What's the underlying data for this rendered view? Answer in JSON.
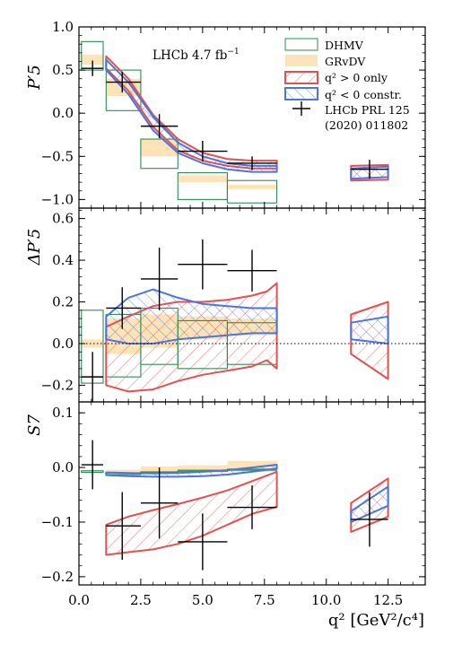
{
  "chart_data": [
    {
      "type": "line",
      "panel": "P5prime",
      "ylabel": "P′5",
      "xlabel": "",
      "ylim": [
        -1.1,
        1.0
      ],
      "xlim": [
        0,
        14
      ],
      "yticks": [
        "−1.0",
        "−0.5",
        "0.0",
        "0.5",
        "1.0"
      ],
      "ytick_values": [
        -1.0,
        -0.5,
        0.0,
        0.5,
        1.0
      ],
      "annotation": "LHCb 4.7 fb",
      "annotation_sup": "−1",
      "legend": [
        {
          "label": "DHMV",
          "kind": "dhmv"
        },
        {
          "label": "GRvDV",
          "kind": "grvdv"
        },
        {
          "label": "q² > 0 only",
          "kind": "red"
        },
        {
          "label": "q² < 0 constr.",
          "kind": "blue"
        },
        {
          "label": "LHCb PRL 125",
          "kind": "data"
        },
        {
          "label": "(2020) 011802",
          "kind": "none"
        }
      ],
      "dhmv_bins": [
        {
          "x": [
            0.1,
            0.98
          ],
          "lo": 0.5,
          "hi": 0.83
        },
        {
          "x": [
            1.1,
            2.5
          ],
          "lo": 0.03,
          "hi": 0.5
        },
        {
          "x": [
            2.5,
            4.0
          ],
          "lo": -0.64,
          "hi": -0.3
        },
        {
          "x": [
            4.0,
            6.0
          ],
          "lo": -1.0,
          "hi": -0.69
        },
        {
          "x": [
            6.0,
            8.0
          ],
          "lo": -1.04,
          "hi": -0.78
        }
      ],
      "grvdv_bins": [
        {
          "x": [
            0.1,
            0.98
          ],
          "lo": 0.56,
          "hi": 0.68
        },
        {
          "x": [
            1.1,
            2.5
          ],
          "lo": 0.2,
          "hi": 0.4
        },
        {
          "x": [
            2.5,
            4.0
          ],
          "lo": -0.5,
          "hi": -0.3
        },
        {
          "x": [
            4.0,
            6.0
          ],
          "lo": -0.8,
          "hi": -0.72
        },
        {
          "x": [
            6.0,
            8.0
          ],
          "lo": -0.88,
          "hi": -0.83
        }
      ],
      "red_bands": [
        {
          "x": [
            1.1,
            2.0,
            3.0,
            4.0,
            5.0,
            6.0,
            7.0,
            8.0
          ],
          "lo": [
            0.52,
            0.26,
            -0.16,
            -0.43,
            -0.55,
            -0.61,
            -0.64,
            -0.64
          ],
          "hi": [
            0.66,
            0.4,
            -0.02,
            -0.3,
            -0.46,
            -0.53,
            -0.55,
            -0.55
          ]
        },
        {
          "x": [
            11.0,
            12.5
          ],
          "lo": [
            -0.78,
            -0.77
          ],
          "hi": [
            -0.61,
            -0.6
          ]
        }
      ],
      "blue_bands": [
        {
          "x": [
            1.1,
            2.0,
            3.0,
            4.0,
            5.0,
            6.0,
            7.0,
            8.0
          ],
          "lo": [
            0.5,
            0.22,
            -0.2,
            -0.46,
            -0.58,
            -0.65,
            -0.68,
            -0.68
          ],
          "hi": [
            0.62,
            0.36,
            -0.04,
            -0.34,
            -0.5,
            -0.58,
            -0.61,
            -0.61
          ]
        },
        {
          "x": [
            11.0,
            12.5
          ],
          "lo": [
            -0.76,
            -0.74
          ],
          "hi": [
            -0.64,
            -0.62
          ]
        }
      ],
      "points": [
        {
          "x": 0.55,
          "xerr": [
            0.1,
            0.98
          ],
          "y": 0.52,
          "yerr": 0.09
        },
        {
          "x": 1.75,
          "xerr": [
            1.1,
            2.5
          ],
          "y": 0.36,
          "yerr": 0.12
        },
        {
          "x": 3.25,
          "xerr": [
            2.5,
            4.0
          ],
          "y": -0.15,
          "yerr": 0.14
        },
        {
          "x": 5.0,
          "xerr": [
            4.0,
            6.0
          ],
          "y": -0.44,
          "yerr": 0.12
        },
        {
          "x": 7.0,
          "xerr": [
            6.0,
            8.0
          ],
          "y": -0.58,
          "yerr": 0.08
        },
        {
          "x": 11.75,
          "xerr": [
            11.0,
            12.5
          ],
          "y": -0.65,
          "yerr": 0.11
        }
      ]
    },
    {
      "type": "line",
      "panel": "DeltaP5prime",
      "ylabel": "ΔP′5",
      "xlabel": "",
      "ylim": [
        -0.28,
        0.65
      ],
      "xlim": [
        0,
        14
      ],
      "yticks": [
        "−0.2",
        "0.0",
        "0.2",
        "0.4",
        "0.6"
      ],
      "ytick_values": [
        -0.2,
        0.0,
        0.2,
        0.4,
        0.6
      ],
      "zero_line": true,
      "dhmv_bins": [
        {
          "x": [
            0.1,
            0.98
          ],
          "lo": -0.19,
          "hi": 0.16
        },
        {
          "x": [
            1.1,
            2.5
          ],
          "lo": -0.16,
          "hi": 0.14
        },
        {
          "x": [
            2.5,
            4.0
          ],
          "lo": -0.1,
          "hi": 0.17
        },
        {
          "x": [
            4.0,
            6.0
          ],
          "lo": -0.12,
          "hi": 0.11
        },
        {
          "x": [
            6.0,
            8.0
          ],
          "lo": -0.1,
          "hi": 0.1
        }
      ],
      "grvdv_bins": [
        {
          "x": [
            0.1,
            0.98
          ],
          "lo": -0.02,
          "hi": 0.02
        },
        {
          "x": [
            1.1,
            2.5
          ],
          "lo": -0.05,
          "hi": 0.12
        },
        {
          "x": [
            2.5,
            4.0
          ],
          "lo": -0.02,
          "hi": 0.14
        },
        {
          "x": [
            4.0,
            6.0
          ],
          "lo": 0.02,
          "hi": 0.13
        },
        {
          "x": [
            6.0,
            8.0
          ],
          "lo": 0.04,
          "hi": 0.12
        }
      ],
      "red_bands": [
        {
          "x": [
            1.1,
            2.0,
            3.0,
            4.0,
            5.0,
            6.0,
            7.0,
            7.6,
            8.0
          ],
          "lo": [
            -0.2,
            -0.23,
            -0.22,
            -0.18,
            -0.15,
            -0.13,
            -0.11,
            -0.08,
            -0.12
          ],
          "hi": [
            0.08,
            0.13,
            0.18,
            0.2,
            0.2,
            0.21,
            0.23,
            0.25,
            0.29
          ]
        },
        {
          "x": [
            11.0,
            12.5
          ],
          "lo": [
            -0.05,
            -0.17
          ],
          "hi": [
            0.14,
            0.2
          ]
        }
      ],
      "blue_bands": [
        {
          "x": [
            1.1,
            2.0,
            3.0,
            4.0,
            5.0,
            6.0,
            7.0,
            8.0
          ],
          "lo": [
            0.02,
            0.0,
            0.0,
            0.02,
            0.03,
            0.04,
            0.05,
            0.05
          ],
          "hi": [
            0.13,
            0.22,
            0.26,
            0.22,
            0.19,
            0.18,
            0.17,
            0.17
          ]
        },
        {
          "x": [
            11.0,
            12.5
          ],
          "lo": [
            0.02,
            0.0
          ],
          "hi": [
            0.1,
            0.13
          ]
        }
      ],
      "points": [
        {
          "x": 0.55,
          "xerr": [
            0.1,
            0.98
          ],
          "y": -0.16,
          "yerr": 0.12
        },
        {
          "x": 1.75,
          "xerr": [
            1.1,
            2.5
          ],
          "y": 0.17,
          "yerr": 0.1
        },
        {
          "x": 3.25,
          "xerr": [
            2.5,
            4.0
          ],
          "y": 0.31,
          "yerr": 0.15
        },
        {
          "x": 5.0,
          "xerr": [
            4.0,
            6.0
          ],
          "y": 0.38,
          "yerr": 0.12
        },
        {
          "x": 7.0,
          "xerr": [
            6.0,
            8.0
          ],
          "y": 0.35,
          "yerr": 0.1
        }
      ]
    },
    {
      "type": "line",
      "panel": "S7",
      "ylabel": "S7",
      "xlabel": "q² [GeV²/c⁴]",
      "ylim": [
        -0.215,
        0.12
      ],
      "xlim": [
        0,
        14
      ],
      "yticks": [
        "−0.2",
        "−0.1",
        "0.0",
        "0.1"
      ],
      "ytick_values": [
        -0.2,
        -0.1,
        0.0,
        0.1
      ],
      "xticks": [
        "0.0",
        "2.5",
        "5.0",
        "7.5",
        "10.0",
        "12.5"
      ],
      "xtick_values": [
        0.0,
        2.5,
        5.0,
        7.5,
        10.0,
        12.5
      ],
      "dhmv_bins": [
        {
          "x": [
            0.1,
            0.98
          ],
          "lo": -0.009,
          "hi": -0.006
        },
        {
          "x": [
            1.1,
            2.5
          ],
          "lo": -0.013,
          "hi": -0.01
        },
        {
          "x": [
            2.5,
            4.0
          ],
          "lo": -0.01,
          "hi": -0.008
        },
        {
          "x": [
            4.0,
            6.0
          ],
          "lo": -0.007,
          "hi": -0.005
        },
        {
          "x": [
            6.0,
            8.0
          ],
          "lo": -0.005,
          "hi": -0.003
        }
      ],
      "grvdv_bins": [
        {
          "x": [
            0.1,
            0.98
          ],
          "lo": -0.01,
          "hi": -0.006
        },
        {
          "x": [
            1.1,
            2.5
          ],
          "lo": -0.012,
          "hi": -0.004
        },
        {
          "x": [
            2.5,
            4.0
          ],
          "lo": -0.012,
          "hi": 0.002
        },
        {
          "x": [
            4.0,
            6.0
          ],
          "lo": -0.01,
          "hi": 0.004
        },
        {
          "x": [
            6.0,
            8.0
          ],
          "lo": -0.008,
          "hi": 0.012
        }
      ],
      "red_bands": [
        {
          "x": [
            1.1,
            2.0,
            3.0,
            4.0,
            5.0,
            6.0,
            7.0,
            8.0
          ],
          "lo": [
            -0.16,
            -0.155,
            -0.15,
            -0.14,
            -0.125,
            -0.105,
            -0.085,
            -0.072
          ],
          "hi": [
            -0.105,
            -0.09,
            -0.078,
            -0.067,
            -0.055,
            -0.042,
            -0.025,
            -0.008
          ]
        },
        {
          "x": [
            11.0,
            12.5
          ],
          "lo": [
            -0.118,
            -0.09
          ],
          "hi": [
            -0.065,
            -0.02
          ]
        }
      ],
      "blue_bands": [
        {
          "x": [
            1.1,
            2.0,
            3.0,
            4.0,
            5.0,
            6.0,
            7.0,
            8.0
          ],
          "lo": [
            -0.014,
            -0.016,
            -0.017,
            -0.017,
            -0.016,
            -0.013,
            -0.008,
            -0.002
          ],
          "hi": [
            -0.009,
            -0.01,
            -0.011,
            -0.01,
            -0.008,
            -0.005,
            0.0,
            0.005
          ]
        },
        {
          "x": [
            11.0,
            12.5
          ],
          "lo": [
            -0.1,
            -0.07
          ],
          "hi": [
            -0.08,
            -0.035
          ]
        }
      ],
      "points": [
        {
          "x": 0.55,
          "xerr": [
            0.1,
            0.98
          ],
          "y": 0.005,
          "yerr": 0.045
        },
        {
          "x": 1.75,
          "xerr": [
            1.1,
            2.5
          ],
          "y": -0.107,
          "yerr": 0.062
        },
        {
          "x": 3.25,
          "xerr": [
            2.5,
            4.0
          ],
          "y": -0.065,
          "yerr": 0.065
        },
        {
          "x": 5.0,
          "xerr": [
            4.0,
            6.0
          ],
          "y": -0.136,
          "yerr": 0.052
        },
        {
          "x": 7.0,
          "xerr": [
            6.0,
            8.0
          ],
          "y": -0.073,
          "yerr": 0.04
        },
        {
          "x": 11.75,
          "xerr": [
            11.0,
            12.5
          ],
          "y": -0.095,
          "yerr": 0.05
        }
      ]
    }
  ],
  "colors": {
    "dhmv": "#2e8b57",
    "grvdv": "#fde3b8",
    "red": "#e35050",
    "blue": "#4a74e0",
    "data": "#000000"
  }
}
